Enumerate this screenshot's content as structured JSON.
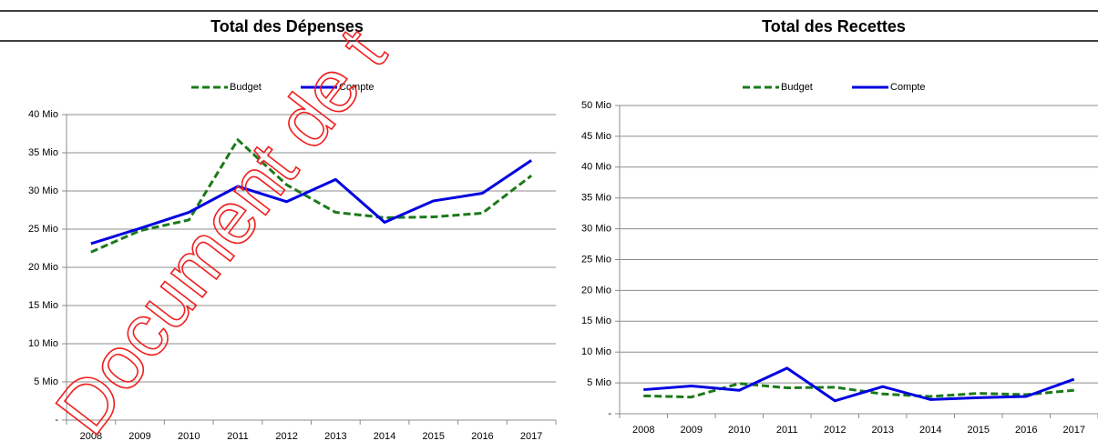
{
  "watermark": "Document de t",
  "chart_data": [
    {
      "type": "line",
      "title": "Total des Dépenses",
      "categories": [
        "2008",
        "2009",
        "2010",
        "2011",
        "2012",
        "2013",
        "2014",
        "2015",
        "2016",
        "2017"
      ],
      "series": [
        {
          "name": "Budget",
          "color": "#1a7a1a",
          "line_style": "dashed",
          "values": [
            22,
            24.8,
            26.2,
            36.7,
            30.8,
            27.2,
            26.5,
            26.6,
            27.1,
            32
          ]
        },
        {
          "name": "Compte",
          "color": "#0000e0",
          "line_style": "solid",
          "values": [
            23.1,
            25.1,
            27.2,
            30.6,
            28.6,
            31.5,
            25.9,
            28.7,
            29.7,
            34
          ]
        }
      ],
      "ylim": [
        0,
        40
      ],
      "yticks": [
        {
          "value": 0,
          "label": "-"
        },
        {
          "value": 5,
          "label": "5 Mio"
        },
        {
          "value": 10,
          "label": "10 Mio"
        },
        {
          "value": 15,
          "label": "15 Mio"
        },
        {
          "value": 20,
          "label": "20 Mio"
        },
        {
          "value": 25,
          "label": "25 Mio"
        },
        {
          "value": 30,
          "label": "30 Mio"
        },
        {
          "value": 35,
          "label": "35 Mio"
        },
        {
          "value": 40,
          "label": "40 Mio"
        }
      ],
      "grid": true,
      "legend": "top"
    },
    {
      "type": "line",
      "title": "Total des Recettes",
      "categories": [
        "2008",
        "2009",
        "2010",
        "2011",
        "2012",
        "2013",
        "2014",
        "2015",
        "2016",
        "2017"
      ],
      "series": [
        {
          "name": "Budget",
          "color": "#1a7a1a",
          "line_style": "dashed",
          "values": [
            2.9,
            2.7,
            4.9,
            4.2,
            4.3,
            3.2,
            2.8,
            3.3,
            3.1,
            3.8
          ]
        },
        {
          "name": "Compte",
          "color": "#0000e0",
          "line_style": "solid",
          "values": [
            3.9,
            4.5,
            3.8,
            7.4,
            2.1,
            4.4,
            2.3,
            2.6,
            2.8,
            5.6
          ]
        }
      ],
      "ylim": [
        0,
        50
      ],
      "yticks": [
        {
          "value": 0,
          "label": "-"
        },
        {
          "value": 5,
          "label": "5 Mio"
        },
        {
          "value": 10,
          "label": "10 Mio"
        },
        {
          "value": 15,
          "label": "15 Mio"
        },
        {
          "value": 20,
          "label": "20 Mio"
        },
        {
          "value": 25,
          "label": "25 Mio"
        },
        {
          "value": 30,
          "label": "30 Mio"
        },
        {
          "value": 35,
          "label": "35 Mio"
        },
        {
          "value": 40,
          "label": "40 Mio"
        },
        {
          "value": 45,
          "label": "45 Mio"
        },
        {
          "value": 50,
          "label": "50 Mio"
        }
      ],
      "grid": true,
      "legend": "top"
    }
  ]
}
